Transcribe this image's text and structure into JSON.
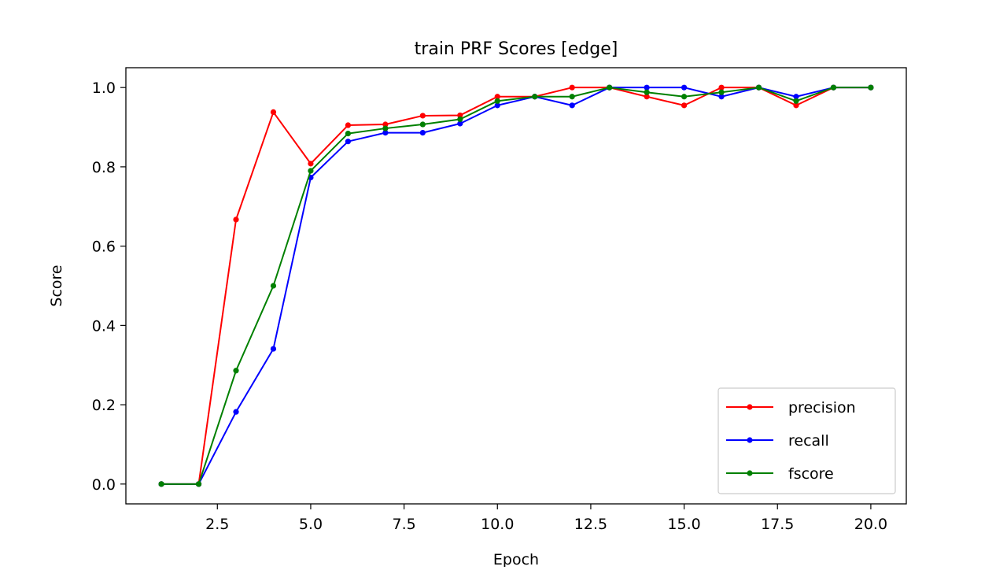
{
  "chart_data": {
    "type": "line",
    "title": "train PRF Scores [edge]",
    "xlabel": "Epoch",
    "ylabel": "Score",
    "xlim": [
      0.05,
      20.95
    ],
    "ylim": [
      -0.05,
      1.05
    ],
    "xticks": [
      2.5,
      5.0,
      7.5,
      10.0,
      12.5,
      15.0,
      17.5,
      20.0
    ],
    "xtick_labels": [
      "2.5",
      "5.0",
      "7.5",
      "10.0",
      "12.5",
      "15.0",
      "17.5",
      "20.0"
    ],
    "yticks": [
      0.0,
      0.2,
      0.4,
      0.6,
      0.8,
      1.0
    ],
    "ytick_labels": [
      "0.0",
      "0.2",
      "0.4",
      "0.6",
      "0.8",
      "1.0"
    ],
    "grid": false,
    "legend_position": "lower-right",
    "x": [
      1,
      2,
      3,
      4,
      5,
      6,
      7,
      8,
      9,
      10,
      11,
      12,
      13,
      14,
      15,
      16,
      17,
      18,
      19,
      20
    ],
    "series": [
      {
        "name": "precision",
        "color": "#ff0000",
        "values": [
          0.0,
          0.0,
          0.667,
          0.938,
          0.808,
          0.905,
          0.907,
          0.929,
          0.93,
          0.977,
          0.977,
          1.0,
          1.0,
          0.977,
          0.955,
          1.0,
          1.0,
          0.955,
          1.0,
          1.0
        ]
      },
      {
        "name": "recall",
        "color": "#0000ff",
        "values": [
          0.0,
          0.0,
          0.182,
          0.341,
          0.773,
          0.864,
          0.886,
          0.886,
          0.909,
          0.955,
          0.977,
          0.955,
          1.0,
          1.0,
          1.0,
          0.977,
          1.0,
          0.977,
          1.0,
          1.0
        ]
      },
      {
        "name": "fscore",
        "color": "#008000",
        "values": [
          0.0,
          0.0,
          0.286,
          0.5,
          0.79,
          0.884,
          0.897,
          0.907,
          0.92,
          0.966,
          0.977,
          0.977,
          1.0,
          0.988,
          0.977,
          0.988,
          1.0,
          0.966,
          1.0,
          1.0
        ]
      }
    ]
  }
}
